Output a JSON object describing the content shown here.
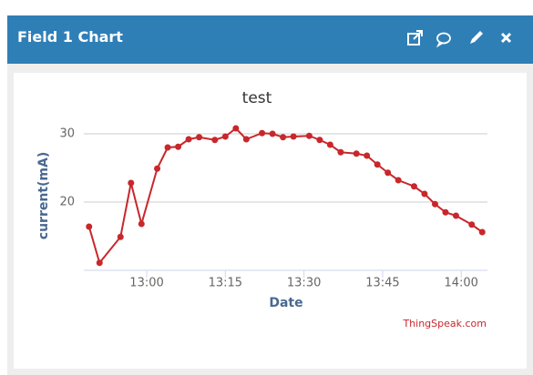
{
  "header": {
    "title": "Field 1 Chart"
  },
  "chart_data": {
    "type": "line",
    "title": "test",
    "x_label": "Date",
    "y_label": "current(mA)",
    "credit": "ThingSpeak.com",
    "x": [
      "12:49",
      "12:51",
      "12:55",
      "12:57",
      "12:59",
      "13:02",
      "13:04",
      "13:06",
      "13:08",
      "13:10",
      "13:13",
      "13:15",
      "13:17",
      "13:19",
      "13:22",
      "13:24",
      "13:26",
      "13:28",
      "13:31",
      "13:33",
      "13:35",
      "13:37",
      "13:40",
      "13:42",
      "13:44",
      "13:46",
      "13:48",
      "13:51",
      "13:53",
      "13:55",
      "13:57",
      "13:59",
      "14:02",
      "14:04"
    ],
    "series": [
      {
        "name": "Field 1",
        "color": "#c8272b",
        "values": [
          16.4,
          11.1,
          14.9,
          22.8,
          16.8,
          24.9,
          28.0,
          28.1,
          29.2,
          29.5,
          29.1,
          29.6,
          30.8,
          29.2,
          30.1,
          30.0,
          29.5,
          29.6,
          29.7,
          29.1,
          28.4,
          27.3,
          27.1,
          26.8,
          25.5,
          24.3,
          23.2,
          22.3,
          21.2,
          19.7,
          18.5,
          18.0,
          16.7,
          15.6
        ]
      }
    ],
    "xlim": [
      "12:48",
      "14:05"
    ],
    "xticks": [
      "13:00",
      "13:15",
      "13:30",
      "13:45",
      "14:00"
    ],
    "ylim": [
      10,
      32
    ],
    "yticks": [
      20,
      30
    ],
    "grid": true
  }
}
